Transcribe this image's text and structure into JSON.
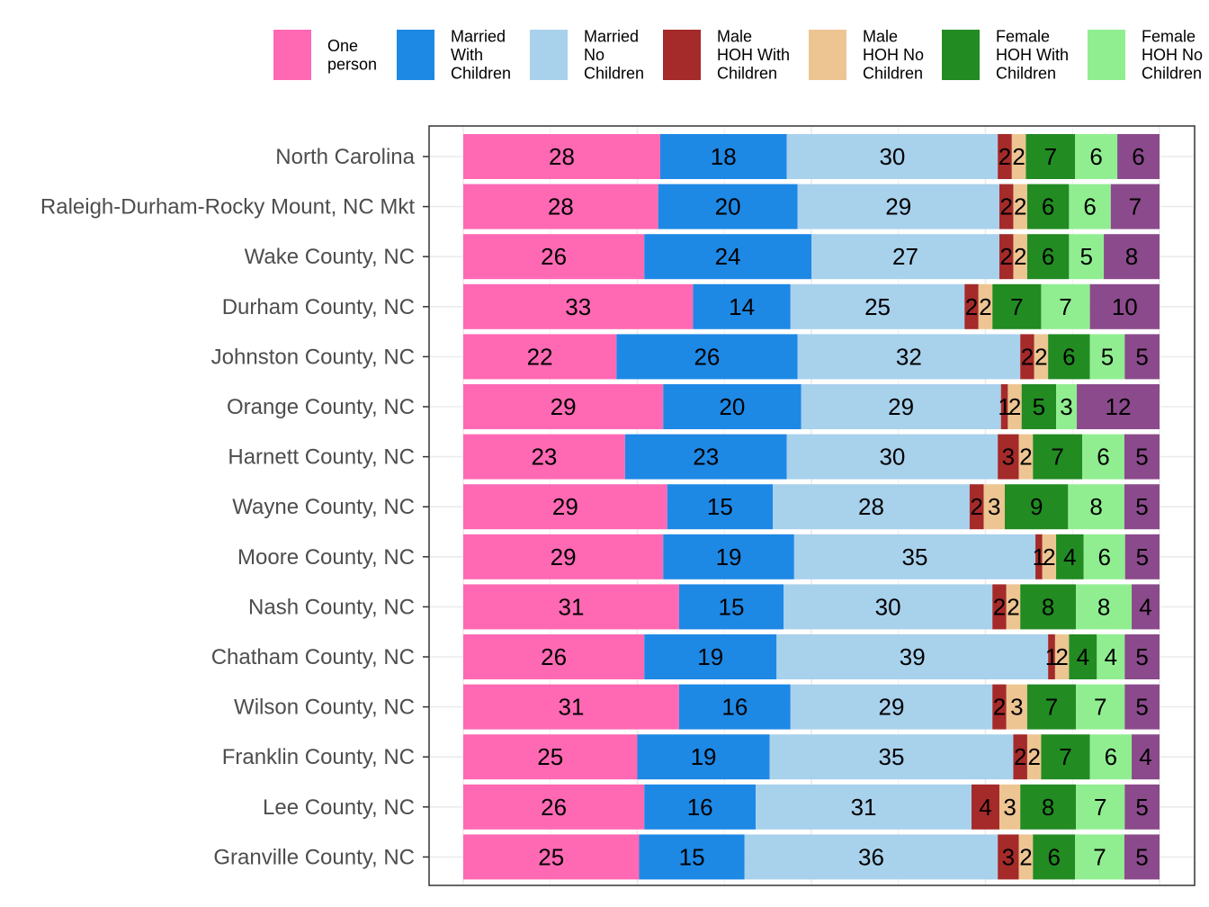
{
  "chart_data": {
    "type": "bar",
    "orientation": "horizontal",
    "stacked": true,
    "normalized_percent": true,
    "title": "",
    "xlabel": "",
    "ylabel": "",
    "xlim": [
      0,
      100
    ],
    "grid": true,
    "legend_position": "top",
    "categories": [
      "North Carolina",
      "Raleigh-Durham-Rocky Mount, NC Mkt",
      "Wake County, NC",
      "Durham County, NC",
      "Johnston County, NC",
      "Orange County, NC",
      "Harnett County, NC",
      "Wayne County, NC",
      "Moore County, NC",
      "Nash County, NC",
      "Chatham County, NC",
      "Wilson County, NC",
      "Franklin County, NC",
      "Lee County, NC",
      "Granville County, NC"
    ],
    "series": [
      {
        "name": "One person",
        "legend_lines": [
          "One",
          "person"
        ],
        "color": "#FF69B4",
        "values": [
          28,
          28,
          26,
          33,
          22,
          29,
          23,
          29,
          29,
          31,
          26,
          31,
          25,
          26,
          25
        ]
      },
      {
        "name": "Married With Children",
        "legend_lines": [
          "Married",
          "With",
          "Children"
        ],
        "color": "#1E88E5",
        "values": [
          18,
          20,
          24,
          14,
          26,
          20,
          23,
          15,
          19,
          15,
          19,
          16,
          19,
          16,
          15
        ]
      },
      {
        "name": "Married No Children",
        "legend_lines": [
          "Married",
          "No",
          "Children"
        ],
        "color": "#A8D1EC",
        "values": [
          30,
          29,
          27,
          25,
          32,
          29,
          30,
          28,
          35,
          30,
          39,
          29,
          35,
          31,
          36
        ]
      },
      {
        "name": "Male HOH With Children",
        "legend_lines": [
          "Male",
          "HOH With",
          "Children"
        ],
        "color": "#A52A2A",
        "values": [
          2,
          2,
          2,
          2,
          2,
          1,
          3,
          2,
          1,
          2,
          1,
          2,
          2,
          4,
          3
        ]
      },
      {
        "name": "Male HOH No Children",
        "legend_lines": [
          "Male",
          "HOH No",
          "Children"
        ],
        "color": "#EDC592",
        "values": [
          2,
          2,
          2,
          2,
          2,
          2,
          2,
          3,
          2,
          2,
          2,
          3,
          2,
          3,
          2
        ]
      },
      {
        "name": "Female HOH With Children",
        "legend_lines": [
          "Female",
          "HOH With",
          "Children"
        ],
        "color": "#228B22",
        "values": [
          7,
          6,
          6,
          7,
          6,
          5,
          7,
          9,
          4,
          8,
          4,
          7,
          7,
          8,
          6
        ]
      },
      {
        "name": "Female HOH No Children",
        "legend_lines": [
          "Female",
          "HOH No",
          "Children"
        ],
        "color": "#90EE90",
        "values": [
          6,
          6,
          5,
          7,
          5,
          3,
          6,
          8,
          6,
          8,
          4,
          7,
          6,
          7,
          7
        ]
      },
      {
        "name": "",
        "legend_lines": [],
        "color": "#8B4A8B",
        "values": [
          6,
          7,
          8,
          10,
          5,
          12,
          5,
          5,
          5,
          4,
          5,
          5,
          4,
          5,
          5
        ]
      }
    ]
  }
}
